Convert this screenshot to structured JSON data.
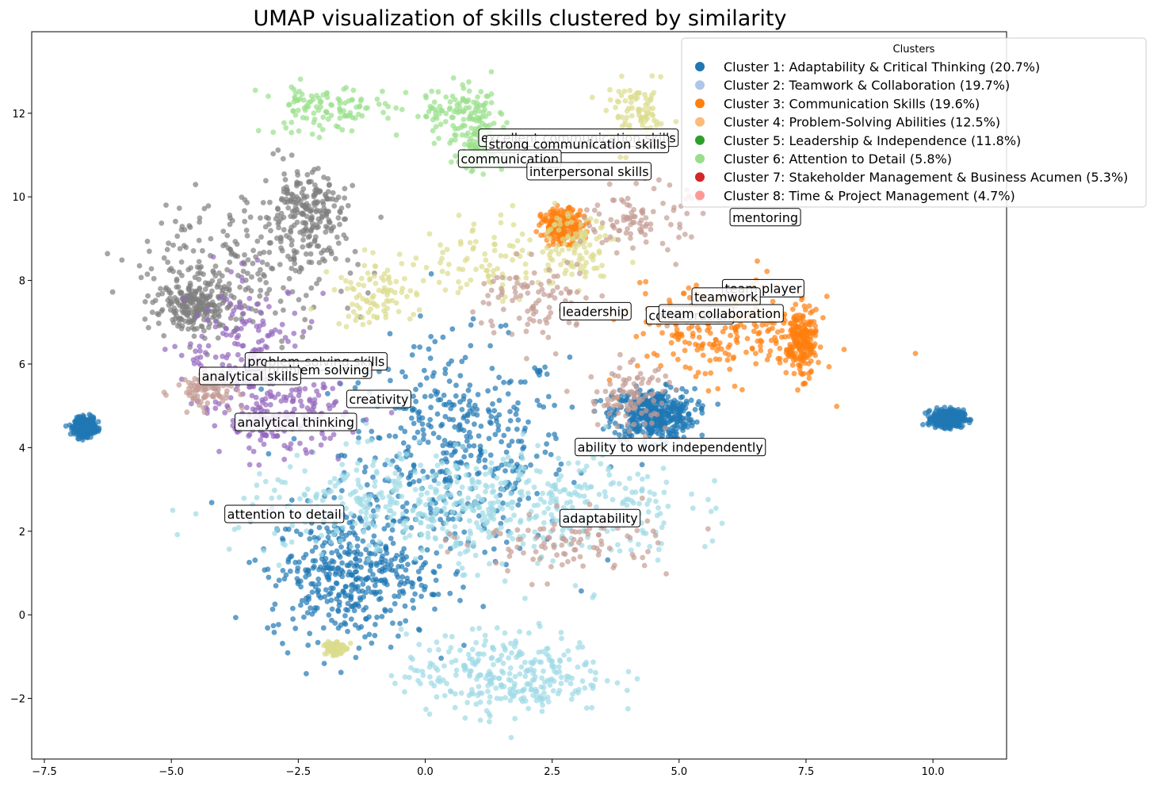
{
  "chart_data": {
    "type": "scatter",
    "title": "UMAP visualization of skills clustered by similarity",
    "xlabel": "",
    "ylabel": "",
    "xlim": [
      -7.75,
      11.45
    ],
    "ylim": [
      -3.45,
      13.95
    ],
    "xticks": [
      -7.5,
      -5.0,
      -2.5,
      0.0,
      2.5,
      5.0,
      7.5,
      10.0
    ],
    "xtick_labels": [
      "−7.5",
      "−5.0",
      "−2.5",
      "0.0",
      "2.5",
      "5.0",
      "7.5",
      "10.0"
    ],
    "yticks": [
      -2,
      0,
      2,
      4,
      6,
      8,
      10,
      12
    ],
    "ytick_labels": [
      "−2",
      "0",
      "2",
      "4",
      "6",
      "8",
      "10",
      "12"
    ],
    "grid": false,
    "legend": {
      "title": "Clusters",
      "position": "top-right",
      "entries": [
        {
          "label": "Cluster 1: Adaptability & Critical Thinking (20.7%)",
          "color": "#1f77b4"
        },
        {
          "label": "Cluster 2: Teamwork & Collaboration (19.7%)",
          "color": "#aec7e8"
        },
        {
          "label": "Cluster 3: Communication Skills (19.6%)",
          "color": "#ff7f0e"
        },
        {
          "label": "Cluster 4: Problem-Solving Abilities (12.5%)",
          "color": "#ffbb78"
        },
        {
          "label": "Cluster 5: Leadership & Independence (11.8%)",
          "color": "#2ca02c"
        },
        {
          "label": "Cluster 6: Attention to Detail (5.8%)",
          "color": "#98df8a"
        },
        {
          "label": "Cluster 7: Stakeholder Management & Business Acumen (5.3%)",
          "color": "#d62728"
        },
        {
          "label": "Cluster 8: Time & Project Management (4.7%)",
          "color": "#ff9896"
        }
      ]
    },
    "point_groups": [
      {
        "color": "#1f77b4",
        "n": 2200,
        "blobs": [
          [
            0.6,
            3.9,
            1.1,
            1.3
          ],
          [
            4.5,
            4.8,
            0.4,
            0.3
          ],
          [
            -6.7,
            4.5,
            0.1,
            0.1
          ],
          [
            10.3,
            4.7,
            0.15,
            0.1
          ],
          [
            -1.5,
            1.0,
            0.8,
            0.8
          ]
        ]
      },
      {
        "color": "#9edae5",
        "n": 900,
        "blobs": [
          [
            1.6,
            -1.4,
            1.0,
            0.5
          ],
          [
            2.5,
            2.6,
            1.3,
            0.7
          ],
          [
            -0.5,
            2.6,
            1.6,
            0.6
          ]
        ]
      },
      {
        "color": "#ff7f0e",
        "n": 650,
        "blobs": [
          [
            5.8,
            6.8,
            0.9,
            0.6
          ],
          [
            7.4,
            6.5,
            0.15,
            0.4
          ],
          [
            2.7,
            9.3,
            0.2,
            0.2
          ]
        ]
      },
      {
        "color": "#7f7f7f",
        "n": 650,
        "blobs": [
          [
            -3.6,
            8.4,
            1.1,
            0.8
          ],
          [
            -2.4,
            9.6,
            0.4,
            0.5
          ],
          [
            -4.5,
            7.4,
            0.4,
            0.3
          ]
        ]
      },
      {
        "color": "#9467bd",
        "n": 350,
        "blobs": [
          [
            -3.5,
            6.3,
            0.6,
            0.8
          ],
          [
            -2.8,
            4.7,
            0.6,
            0.4
          ]
        ]
      },
      {
        "color": "#98df8a",
        "n": 320,
        "blobs": [
          [
            0.7,
            12.0,
            0.5,
            0.3
          ],
          [
            -2.0,
            12.1,
            0.6,
            0.3
          ],
          [
            1.1,
            11.2,
            0.3,
            0.3
          ]
        ]
      },
      {
        "color": "#dbdb8d",
        "n": 450,
        "blobs": [
          [
            1.4,
            8.5,
            0.8,
            0.5
          ],
          [
            4.2,
            11.9,
            0.3,
            0.4
          ],
          [
            -1.0,
            7.7,
            0.4,
            0.4
          ],
          [
            3.0,
            8.9,
            0.4,
            0.4
          ],
          [
            -1.8,
            -0.8,
            0.1,
            0.1
          ]
        ]
      },
      {
        "color": "#c49c94",
        "n": 480,
        "blobs": [
          [
            2.2,
            7.5,
            0.6,
            0.5
          ],
          [
            4.2,
            9.5,
            0.5,
            0.4
          ],
          [
            2.8,
            1.7,
            1.0,
            0.4
          ],
          [
            4.0,
            5.2,
            0.4,
            0.4
          ],
          [
            -4.3,
            5.4,
            0.3,
            0.2
          ]
        ]
      }
    ],
    "annotations": [
      {
        "text": "excellent communication skills",
        "x": 1.1,
        "y": 11.3
      },
      {
        "text": "strong communication skills",
        "x": 1.25,
        "y": 11.15
      },
      {
        "text": "communication",
        "x": 0.7,
        "y": 10.8
      },
      {
        "text": "interpersonal skills",
        "x": 2.05,
        "y": 10.5
      },
      {
        "text": "mentoring",
        "x": 6.05,
        "y": 9.4
      },
      {
        "text": "team player",
        "x": 5.9,
        "y": 7.7
      },
      {
        "text": "teamwork",
        "x": 5.3,
        "y": 7.5
      },
      {
        "text": "leadership",
        "x": 2.7,
        "y": 7.15
      },
      {
        "text": "collaboration",
        "x": 4.4,
        "y": 7.05
      },
      {
        "text": "team collaboration",
        "x": 4.65,
        "y": 7.1
      },
      {
        "text": "problem-solving skills",
        "x": -3.5,
        "y": 5.95
      },
      {
        "text": "problem solving",
        "x": -3.1,
        "y": 5.75
      },
      {
        "text": "analytical skills",
        "x": -4.4,
        "y": 5.6
      },
      {
        "text": "creativity",
        "x": -1.5,
        "y": 5.05
      },
      {
        "text": "analytical thinking",
        "x": -3.7,
        "y": 4.5
      },
      {
        "text": "ability to work independently",
        "x": 3.0,
        "y": 3.9
      },
      {
        "text": "attention to detail",
        "x": -3.9,
        "y": 2.3
      },
      {
        "text": "adaptability",
        "x": 2.7,
        "y": 2.2
      }
    ]
  }
}
